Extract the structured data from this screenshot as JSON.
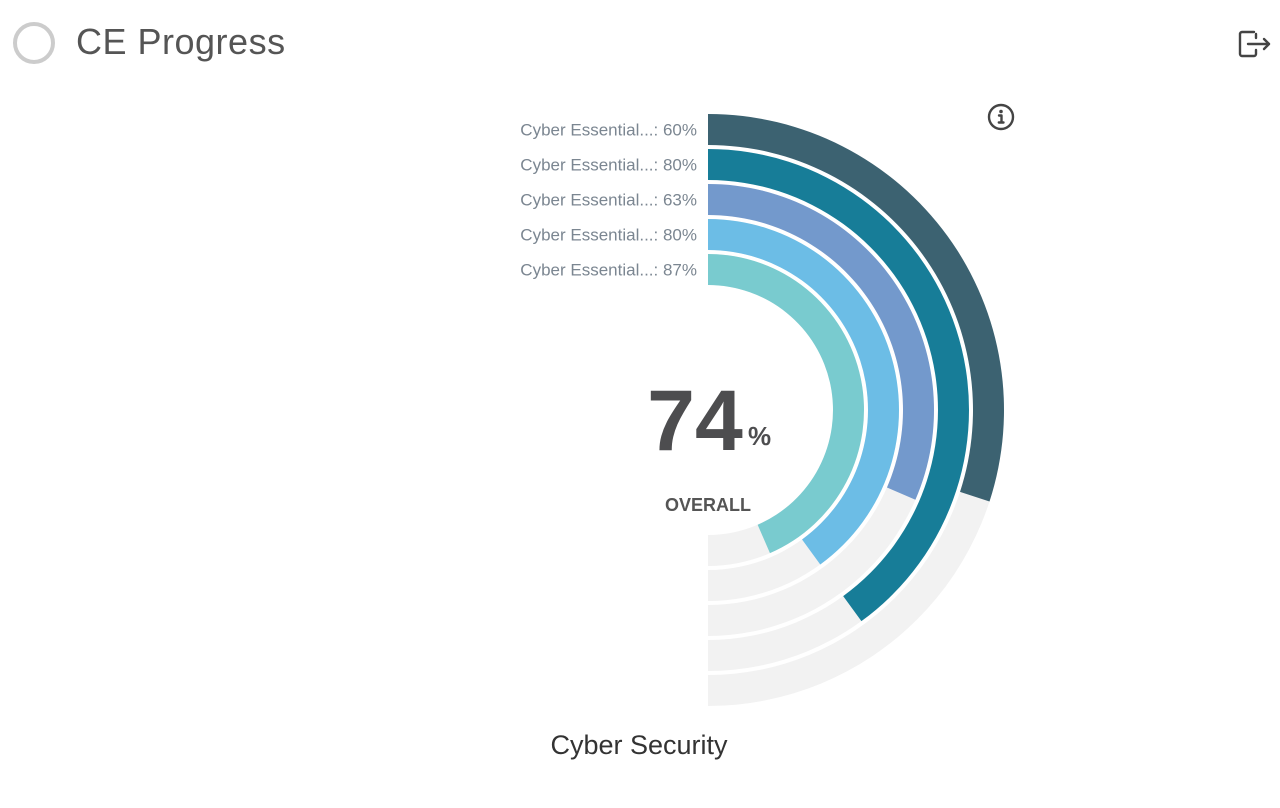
{
  "header": {
    "title": "CE Progress",
    "icon": "progress-ring-icon",
    "icon_color": "#cccccc"
  },
  "toolbar": {
    "logout_icon": "logout-icon",
    "info_icon": "info-icon"
  },
  "chart_data": {
    "type": "radial-bar",
    "title": "",
    "caption": "Cyber Security",
    "center_value": "74",
    "center_unit": "%",
    "center_label": "OVERALL",
    "max_angle_degrees": 180,
    "track_color": "#f2f2f2",
    "series": [
      {
        "label": "Cyber Essential...: 60%",
        "value": 60,
        "color": "#3c6271"
      },
      {
        "label": "Cyber Essential...: 80%",
        "value": 80,
        "color": "#177d98"
      },
      {
        "label": "Cyber Essential...: 63%",
        "value": 63,
        "color": "#7399cc"
      },
      {
        "label": "Cyber Essential...: 80%",
        "value": 80,
        "color": "#6cbde6"
      },
      {
        "label": "Cyber Essential...: 87%",
        "value": 87,
        "color": "#79cbcf"
      }
    ]
  }
}
